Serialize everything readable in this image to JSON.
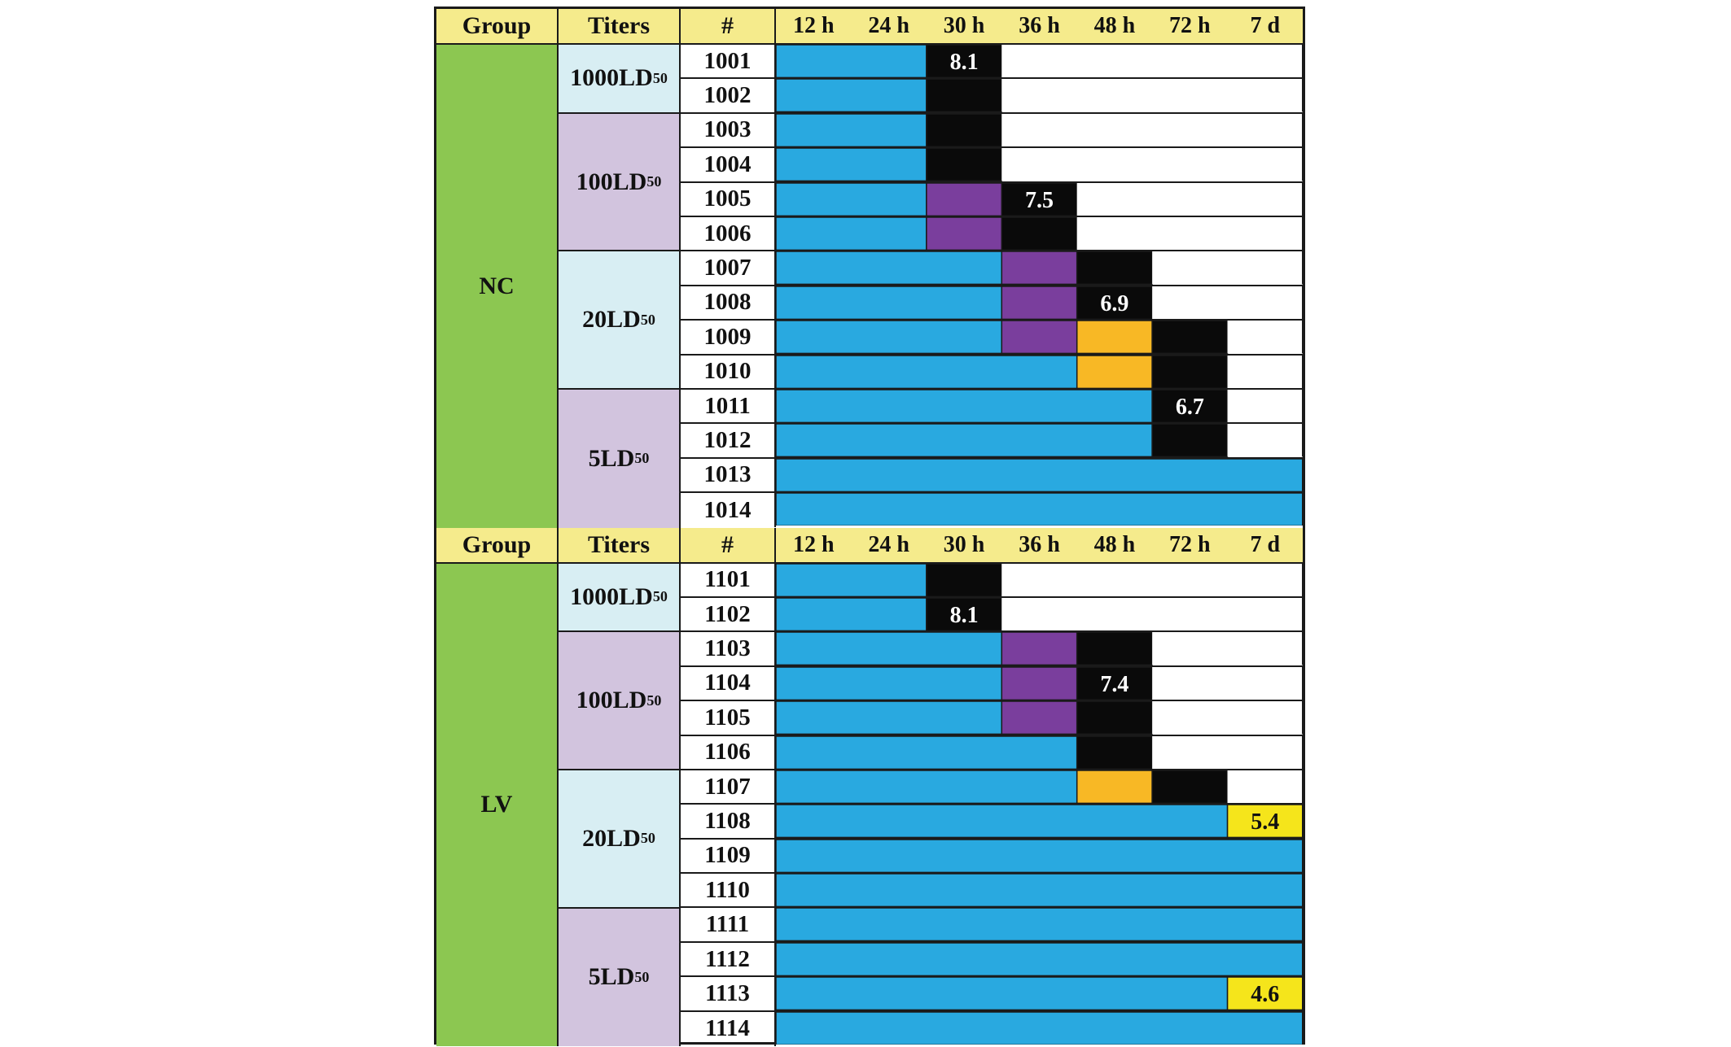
{
  "header": {
    "group": "Group",
    "titers": "Titers",
    "num": "#",
    "times": [
      "12 h",
      "24 h",
      "30 h",
      "36 h",
      "48 h",
      "72 h",
      "7 d"
    ]
  },
  "legend_colors": {
    "healthy": "#29a9e0",
    "purple": "#7a3e9d",
    "orange": "#f8b825",
    "dead": "#0a0a0a",
    "yellow": "#f5e51b",
    "empty": "#ffffff"
  },
  "panels": [
    {
      "group": "NC",
      "titer_groups": [
        {
          "label": "1000LD",
          "sub": "50",
          "bg": "#d8eef3",
          "rows": [
            {
              "id": "1001",
              "cells": [
                "b",
                "b",
                "k",
                "w",
                "w",
                "w",
                "w"
              ],
              "value": "8.1",
              "value_col": 2
            },
            {
              "id": "1002",
              "cells": [
                "b",
                "b",
                "k",
                "w",
                "w",
                "w",
                "w"
              ]
            }
          ]
        },
        {
          "label": "100LD",
          "sub": "50",
          "bg": "#d2c4de",
          "rows": [
            {
              "id": "1003",
              "cells": [
                "b",
                "b",
                "k",
                "w",
                "w",
                "w",
                "w"
              ]
            },
            {
              "id": "1004",
              "cells": [
                "b",
                "b",
                "k",
                "w",
                "w",
                "w",
                "w"
              ]
            },
            {
              "id": "1005",
              "cells": [
                "b",
                "b",
                "p",
                "k",
                "w",
                "w",
                "w"
              ],
              "value": "7.5",
              "value_col": 3
            },
            {
              "id": "1006",
              "cells": [
                "b",
                "b",
                "p",
                "k",
                "w",
                "w",
                "w"
              ]
            }
          ]
        },
        {
          "label": "20LD",
          "sub": "50",
          "bg": "#d8eef3",
          "rows": [
            {
              "id": "1007",
              "cells": [
                "b",
                "b",
                "b",
                "p",
                "k",
                "w",
                "w"
              ]
            },
            {
              "id": "1008",
              "cells": [
                "b",
                "b",
                "b",
                "p",
                "k",
                "w",
                "w"
              ],
              "value": "6.9",
              "value_col": 4
            },
            {
              "id": "1009",
              "cells": [
                "b",
                "b",
                "b",
                "p",
                "o",
                "k",
                "w"
              ]
            },
            {
              "id": "1010",
              "cells": [
                "b",
                "b",
                "b",
                "b",
                "o",
                "k",
                "w"
              ]
            }
          ]
        },
        {
          "label": "5LD",
          "sub": "50",
          "bg": "#d2c4de",
          "rows": [
            {
              "id": "1011",
              "cells": [
                "b",
                "b",
                "b",
                "b",
                "b",
                "k",
                "w"
              ],
              "value": "6.7",
              "value_col": 5
            },
            {
              "id": "1012",
              "cells": [
                "b",
                "b",
                "b",
                "b",
                "b",
                "k",
                "w"
              ]
            },
            {
              "id": "1013",
              "cells": [
                "b",
                "b",
                "b",
                "b",
                "b",
                "b",
                "b"
              ]
            },
            {
              "id": "1014",
              "cells": [
                "b",
                "b",
                "b",
                "b",
                "b",
                "b",
                "b"
              ]
            }
          ]
        }
      ]
    },
    {
      "group": "LV",
      "titer_groups": [
        {
          "label": "1000LD",
          "sub": "50",
          "bg": "#d8eef3",
          "rows": [
            {
              "id": "1101",
              "cells": [
                "b",
                "b",
                "k",
                "w",
                "w",
                "w",
                "w"
              ]
            },
            {
              "id": "1102",
              "cells": [
                "b",
                "b",
                "k",
                "w",
                "w",
                "w",
                "w"
              ],
              "value": "8.1",
              "value_col": 2
            }
          ]
        },
        {
          "label": "100LD",
          "sub": "50",
          "bg": "#d2c4de",
          "rows": [
            {
              "id": "1103",
              "cells": [
                "b",
                "b",
                "b",
                "p",
                "k",
                "w",
                "w"
              ]
            },
            {
              "id": "1104",
              "cells": [
                "b",
                "b",
                "b",
                "p",
                "k",
                "w",
                "w"
              ],
              "value": "7.4",
              "value_col": 4
            },
            {
              "id": "1105",
              "cells": [
                "b",
                "b",
                "b",
                "p",
                "k",
                "w",
                "w"
              ]
            },
            {
              "id": "1106",
              "cells": [
                "b",
                "b",
                "b",
                "b",
                "k",
                "w",
                "w"
              ]
            }
          ]
        },
        {
          "label": "20LD",
          "sub": "50",
          "bg": "#d8eef3",
          "rows": [
            {
              "id": "1107",
              "cells": [
                "b",
                "b",
                "b",
                "b",
                "o",
                "k",
                "w"
              ]
            },
            {
              "id": "1108",
              "cells": [
                "b",
                "b",
                "b",
                "b",
                "b",
                "b",
                "y"
              ],
              "value": "5.4",
              "value_col": 6
            },
            {
              "id": "1109",
              "cells": [
                "b",
                "b",
                "b",
                "b",
                "b",
                "b",
                "b"
              ]
            },
            {
              "id": "1110",
              "cells": [
                "b",
                "b",
                "b",
                "b",
                "b",
                "b",
                "b"
              ]
            }
          ]
        },
        {
          "label": "5LD",
          "sub": "50",
          "bg": "#d2c4de",
          "rows": [
            {
              "id": "1111",
              "cells": [
                "b",
                "b",
                "b",
                "b",
                "b",
                "b",
                "b"
              ]
            },
            {
              "id": "1112",
              "cells": [
                "b",
                "b",
                "b",
                "b",
                "b",
                "b",
                "b"
              ]
            },
            {
              "id": "1113",
              "cells": [
                "b",
                "b",
                "b",
                "b",
                "b",
                "b",
                "y"
              ],
              "value": "4.6",
              "value_col": 6
            },
            {
              "id": "1114",
              "cells": [
                "b",
                "b",
                "b",
                "b",
                "b",
                "b",
                "b"
              ]
            }
          ]
        }
      ]
    }
  ]
}
